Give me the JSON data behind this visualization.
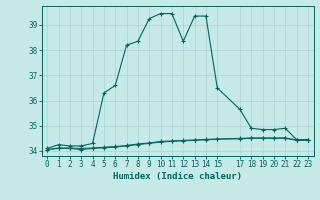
{
  "xlabel": "Humidex (Indice chaleur)",
  "bg_color": "#c5eae7",
  "grid_color": "#afd8d4",
  "line_color": "#006660",
  "x_main": [
    0,
    1,
    2,
    3,
    4,
    5,
    6,
    7,
    8,
    9,
    10,
    11,
    12,
    13,
    14,
    15,
    17,
    18,
    19,
    20,
    21,
    22,
    23
  ],
  "y_main": [
    34.1,
    34.25,
    34.2,
    34.2,
    34.3,
    36.3,
    36.6,
    38.2,
    38.35,
    39.25,
    39.45,
    39.45,
    38.35,
    39.35,
    39.35,
    36.5,
    35.65,
    34.9,
    34.85,
    34.85,
    34.9,
    34.45,
    34.45
  ],
  "x_flat1": [
    0,
    1,
    2,
    3,
    4,
    5,
    6,
    7,
    8,
    9,
    10,
    11,
    12,
    13,
    14,
    15,
    17,
    18,
    19,
    20,
    21,
    22,
    23
  ],
  "y_flat1": [
    34.05,
    34.1,
    34.1,
    34.05,
    34.1,
    34.12,
    34.15,
    34.2,
    34.25,
    34.3,
    34.35,
    34.38,
    34.4,
    34.42,
    34.44,
    34.46,
    34.48,
    34.5,
    34.5,
    34.5,
    34.5,
    34.42,
    34.42
  ],
  "x_flat2": [
    0,
    1,
    2,
    3,
    4,
    5,
    6,
    7,
    8,
    9,
    10,
    11,
    12,
    13,
    14,
    15,
    17,
    18,
    19,
    20,
    21,
    22,
    23
  ],
  "y_flat2": [
    34.05,
    34.12,
    34.12,
    34.1,
    34.12,
    34.15,
    34.18,
    34.22,
    34.28,
    34.32,
    34.38,
    34.4,
    34.42,
    34.44,
    34.46,
    34.48,
    34.5,
    34.52,
    34.52,
    34.52,
    34.52,
    34.44,
    34.44
  ],
  "xlim": [
    -0.5,
    23.5
  ],
  "ylim": [
    33.8,
    39.75
  ],
  "yticks": [
    34,
    35,
    36,
    37,
    38,
    39
  ],
  "xticks": [
    0,
    1,
    2,
    3,
    4,
    5,
    6,
    7,
    8,
    9,
    10,
    11,
    12,
    13,
    14,
    15,
    17,
    18,
    19,
    20,
    21,
    22,
    23
  ],
  "xtick_labels": [
    "0",
    "1",
    "2",
    "3",
    "4",
    "5",
    "6",
    "7",
    "8",
    "9",
    "10",
    "11",
    "12",
    "13",
    "14",
    "15",
    "17",
    "18",
    "19",
    "20",
    "21",
    "22",
    "23"
  ]
}
